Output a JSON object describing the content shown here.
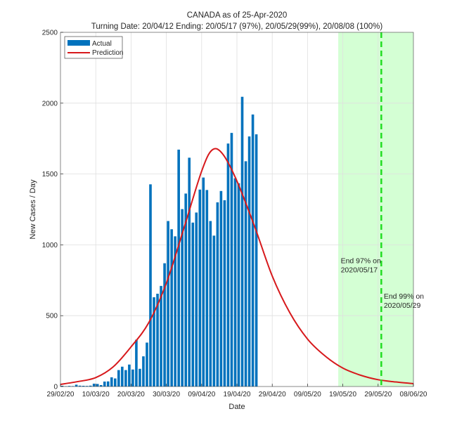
{
  "chart_data": {
    "type": "bar",
    "title": "CANADA as of 25-Apr-2020",
    "subtitle": "Turning Date: 20/04/12  Ending: 20/05/17 (97%), 20/05/29(99%), 20/08/08 (100%)",
    "xlabel": "Date",
    "ylabel": "New Cases / Day",
    "ylim": [
      0,
      2500
    ],
    "yticks": [
      0,
      500,
      1000,
      1500,
      2000,
      2500
    ],
    "ytick_labels": [
      "0",
      "500",
      "1000",
      "1500",
      "2000",
      "2500"
    ],
    "x_start_date": "29/02/20",
    "x_range_days": [
      0,
      100
    ],
    "xticks_days": [
      0,
      10,
      20,
      30,
      40,
      50,
      60,
      70,
      80,
      90,
      100
    ],
    "xtick_labels": [
      "29/02/20",
      "10/03/20",
      "20/03/20",
      "30/03/20",
      "09/04/20",
      "19/04/20",
      "29/04/20",
      "09/05/20",
      "19/05/20",
      "29/05/20",
      "08/06/20"
    ],
    "grid": true,
    "legend_position": "top-left",
    "series": [
      {
        "name": "Actual",
        "kind": "bar",
        "color": "#0072BD",
        "x_days": [
          0,
          1,
          2,
          3,
          4,
          5,
          6,
          7,
          8,
          9,
          10,
          11,
          12,
          13,
          14,
          15,
          16,
          17,
          18,
          19,
          20,
          21,
          22,
          23,
          24,
          25,
          26,
          27,
          28,
          29,
          30,
          31,
          32,
          33,
          34,
          35,
          36,
          37,
          38,
          39,
          40,
          41,
          42,
          43,
          44,
          45,
          46,
          47,
          48,
          49,
          50,
          51,
          52,
          53,
          54,
          55
        ],
        "values": [
          5,
          2,
          4,
          3,
          13,
          6,
          5,
          4,
          6,
          20,
          18,
          10,
          35,
          36,
          65,
          57,
          116,
          140,
          116,
          155,
          120,
          330,
          125,
          213,
          310,
          1427,
          630,
          655,
          710,
          870,
          1168,
          1110,
          1060,
          1672,
          1252,
          1362,
          1615,
          1157,
          1228,
          1390,
          1475,
          1387,
          1168,
          1065,
          1300,
          1380,
          1315,
          1715,
          1790,
          1470,
          1435,
          2045,
          1590,
          1765,
          1920,
          1780
        ]
      },
      {
        "name": "Prediction",
        "kind": "line",
        "color": "#D7191C",
        "x_days": [
          0,
          5,
          10,
          15,
          20,
          25,
          30,
          35,
          40,
          43,
          46,
          50,
          55,
          60,
          65,
          70,
          75,
          80,
          85,
          90,
          95,
          100
        ],
        "values": [
          15,
          35,
          63,
          140,
          280,
          450,
          730,
          1120,
          1520,
          1670,
          1640,
          1450,
          1130,
          780,
          520,
          335,
          215,
          130,
          80,
          48,
          32,
          20
        ]
      }
    ],
    "shaded_region": {
      "start_day": 78.7,
      "end_day": 100,
      "color": "#ccffcc",
      "meaning": "ending window"
    },
    "dashed_line": {
      "day": 90.9,
      "color": "#22dd22"
    },
    "annotations": [
      {
        "line1": "End 97% on",
        "line2": "2020/05/17",
        "day": 79.2,
        "value": 890
      },
      {
        "line1": "End 99% on",
        "line2": "2020/05/29",
        "day": 91.4,
        "value": 640
      }
    ]
  }
}
